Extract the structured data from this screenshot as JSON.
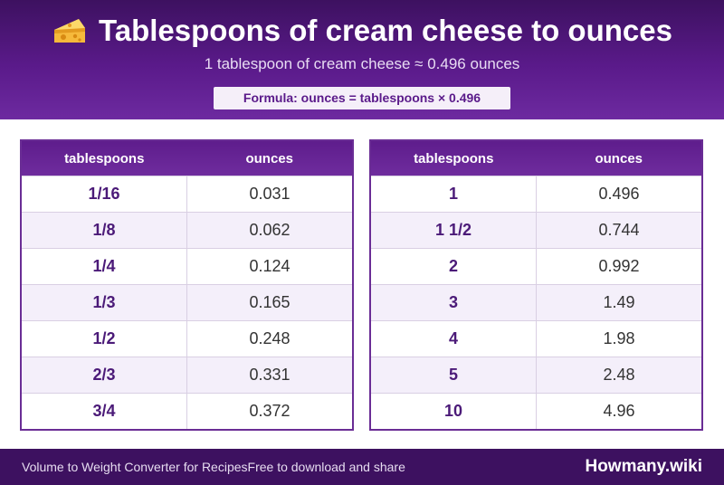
{
  "header": {
    "title": "Tablespoons of cream cheese to ounces",
    "title_icon": "cheese-icon",
    "subtitle": "1 tablespoon of cream cheese ≈ 0.496 ounces",
    "formula": "Formula: ounces = tablespoons × 0.496"
  },
  "table_left": {
    "col_tbsp": "tablespoons",
    "col_oz": "ounces",
    "rows": [
      {
        "tbsp": "1/16",
        "oz": "0.031"
      },
      {
        "tbsp": "1/8",
        "oz": "0.062"
      },
      {
        "tbsp": "1/4",
        "oz": "0.124"
      },
      {
        "tbsp": "1/3",
        "oz": "0.165"
      },
      {
        "tbsp": "1/2",
        "oz": "0.248"
      },
      {
        "tbsp": "2/3",
        "oz": "0.331"
      },
      {
        "tbsp": "3/4",
        "oz": "0.372"
      }
    ]
  },
  "table_right": {
    "col_tbsp": "tablespoons",
    "col_oz": "ounces",
    "rows": [
      {
        "tbsp": "1",
        "oz": "0.496"
      },
      {
        "tbsp": "1 1/2",
        "oz": "0.744"
      },
      {
        "tbsp": "2",
        "oz": "0.992"
      },
      {
        "tbsp": "3",
        "oz": "1.49"
      },
      {
        "tbsp": "4",
        "oz": "1.98"
      },
      {
        "tbsp": "5",
        "oz": "2.48"
      },
      {
        "tbsp": "10",
        "oz": "4.96"
      }
    ]
  },
  "footer": {
    "left_text_1": "Volume to Weight Converter for Recipes",
    "left_text_2": "Free to download and share",
    "brand": "Howmany.wiki"
  },
  "colors": {
    "header_bg": "#5a1a8a",
    "accent_text": "#4b1a78",
    "alt_row": "#f4effa",
    "footer_bg": "#3d1160"
  }
}
